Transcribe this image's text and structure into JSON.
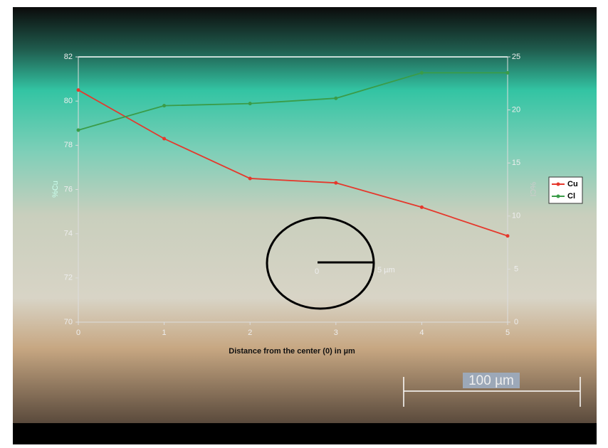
{
  "chart_data": {
    "type": "line",
    "x_label": "Distance from the center (0) in µm",
    "y_label": "%Cu",
    "y2_label": "%Cl",
    "x": [
      0,
      1,
      2,
      3,
      4,
      5
    ],
    "xlim": [
      0,
      5
    ],
    "xticks": [
      0,
      1,
      2,
      3,
      4,
      5
    ],
    "ylim": [
      70,
      82
    ],
    "yticks": [
      70,
      72,
      74,
      76,
      78,
      80,
      82
    ],
    "y2lim": [
      0,
      25
    ],
    "y2ticks": [
      0,
      5,
      10,
      15,
      20,
      25
    ],
    "series": [
      {
        "name": "Cu",
        "color": "#e5382c",
        "values": [
          80.5,
          78.3,
          76.5,
          76.3,
          75.2,
          73.9
        ]
      },
      {
        "name": "Cl",
        "color": "#3a9c48",
        "axis": "y2",
        "values": [
          18.1,
          20.4,
          20.6,
          21.1,
          23.5,
          23.5
        ]
      }
    ],
    "legend": "right",
    "annotations": [
      "0",
      "5 µm",
      "100 µm"
    ]
  }
}
